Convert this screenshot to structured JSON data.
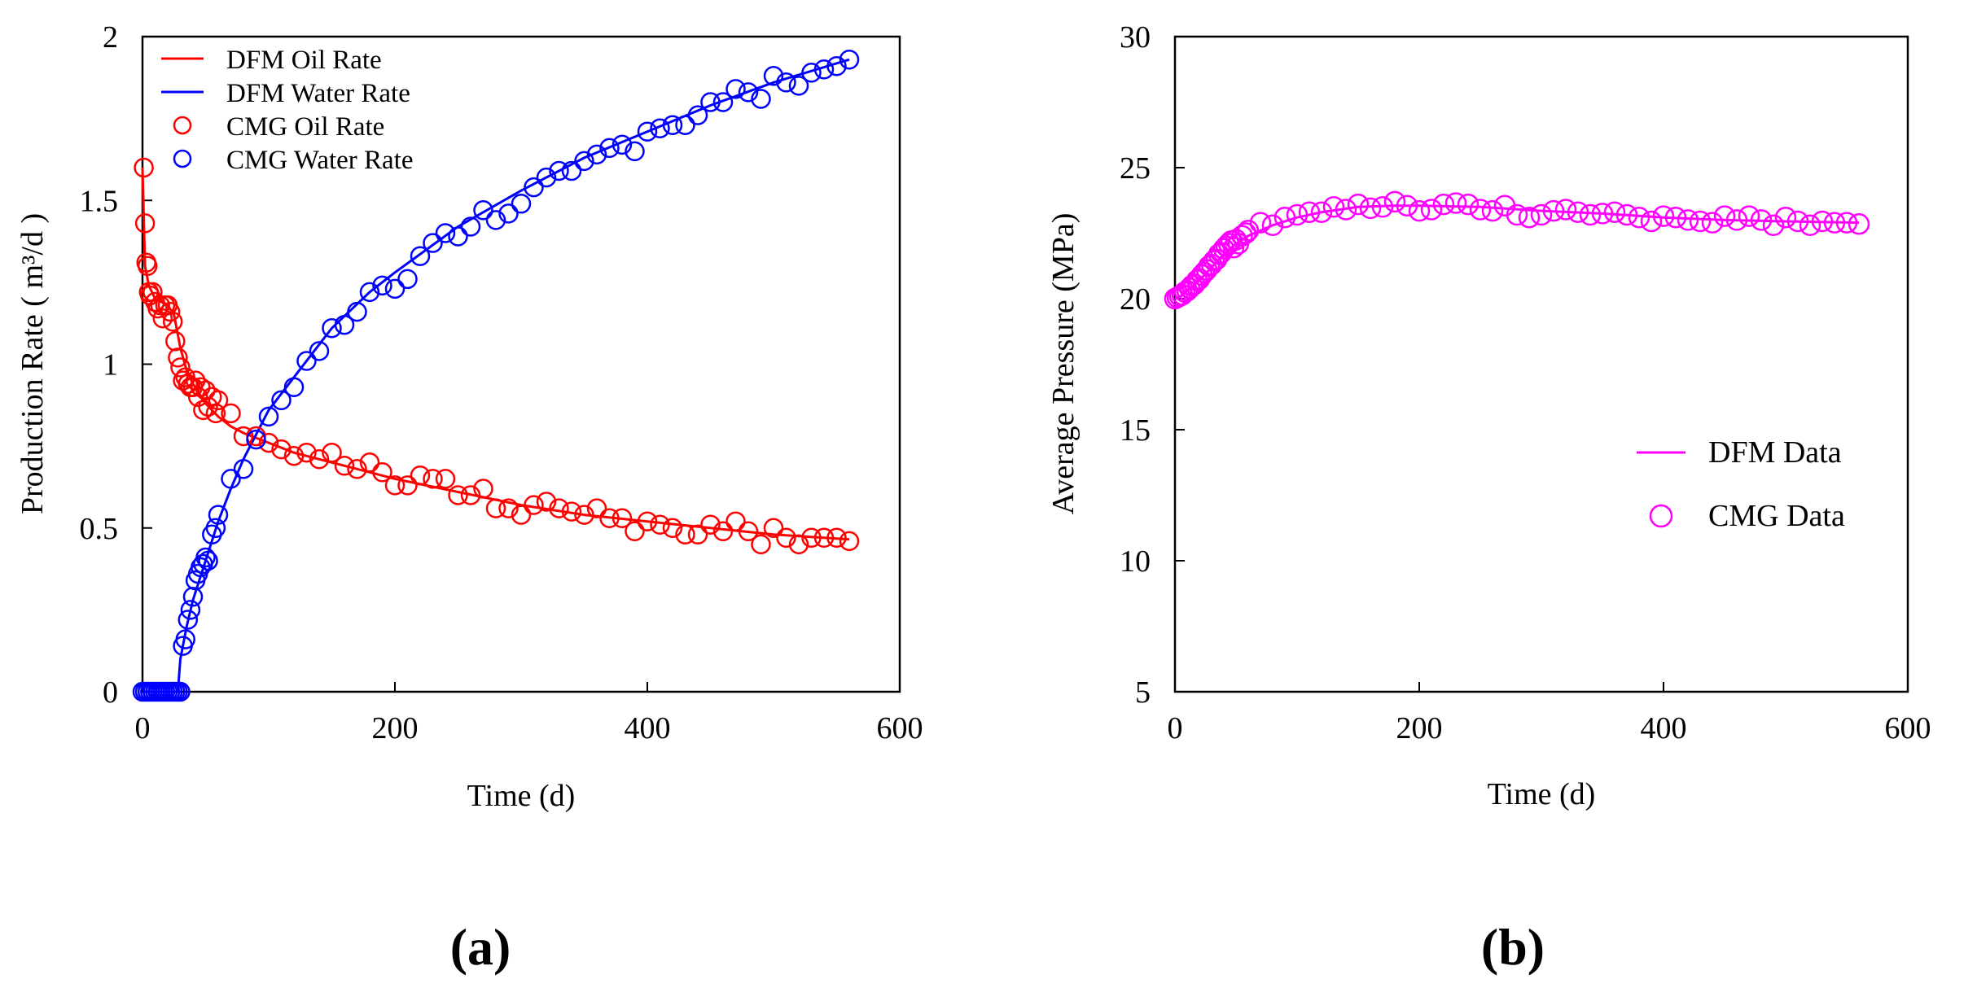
{
  "chart_data": [
    {
      "id": "a",
      "type": "line+scatter",
      "panel_label": "(a)",
      "xlabel": "Time (d)",
      "ylabel": "Production Rate ( m³/d )",
      "xlim": [
        0,
        600
      ],
      "ylim": [
        0,
        2
      ],
      "xticks": [
        0,
        200,
        400,
        600
      ],
      "yticks": [
        0,
        0.5,
        1,
        1.5,
        2
      ],
      "ytick_labels": [
        "0",
        "0.5",
        "1",
        "1.5",
        "2"
      ],
      "legend_position": "top-left",
      "series": [
        {
          "name": "DFM  Oil Rate",
          "kind": "line",
          "color": "#ff0000",
          "x": [
            0,
            2,
            5,
            10,
            15,
            20,
            25,
            30,
            35,
            40,
            50,
            60,
            70,
            80,
            100,
            120,
            150,
            180,
            200,
            250,
            300,
            350,
            400,
            450,
            500,
            560
          ],
          "y": [
            1.6,
            1.3,
            1.24,
            1.2,
            1.19,
            1.18,
            1.15,
            1.05,
            0.98,
            0.94,
            0.88,
            0.84,
            0.81,
            0.79,
            0.76,
            0.73,
            0.7,
            0.67,
            0.65,
            0.61,
            0.57,
            0.54,
            0.52,
            0.5,
            0.48,
            0.465
          ]
        },
        {
          "name": "DFM  Water Rate",
          "kind": "line",
          "color": "#0000ff",
          "x": [
            0,
            28,
            30,
            35,
            40,
            50,
            60,
            70,
            80,
            100,
            120,
            150,
            180,
            200,
            250,
            300,
            350,
            400,
            450,
            500,
            560
          ],
          "y": [
            0,
            0,
            0.1,
            0.2,
            0.28,
            0.4,
            0.52,
            0.62,
            0.71,
            0.86,
            0.96,
            1.11,
            1.22,
            1.28,
            1.42,
            1.53,
            1.63,
            1.71,
            1.79,
            1.86,
            1.93
          ]
        },
        {
          "name": "CMG Oil Rate",
          "kind": "scatter",
          "color": "#ff0000",
          "x": [
            1,
            2,
            3,
            4,
            5,
            6,
            8,
            10,
            12,
            14,
            16,
            18,
            20,
            22,
            24,
            26,
            28,
            30,
            32,
            34,
            36,
            38,
            40,
            42,
            44,
            46,
            48,
            50,
            52,
            55,
            58,
            60,
            70,
            80,
            90,
            100,
            110,
            120,
            130,
            140,
            150,
            160,
            170,
            180,
            190,
            200,
            210,
            220,
            230,
            240,
            250,
            260,
            270,
            280,
            290,
            300,
            310,
            320,
            330,
            340,
            350,
            360,
            370,
            380,
            390,
            400,
            410,
            420,
            430,
            440,
            450,
            460,
            470,
            480,
            490,
            500,
            510,
            520,
            530,
            540,
            550,
            560
          ],
          "y": [
            1.6,
            1.43,
            1.31,
            1.3,
            1.22,
            1.21,
            1.22,
            1.19,
            1.17,
            1.18,
            1.14,
            1.18,
            1.18,
            1.16,
            1.13,
            1.07,
            1.02,
            0.99,
            0.95,
            0.96,
            0.94,
            0.93,
            0.93,
            0.95,
            0.9,
            0.93,
            0.86,
            0.92,
            0.87,
            0.9,
            0.85,
            0.89,
            0.85,
            0.78,
            0.78,
            0.76,
            0.74,
            0.72,
            0.73,
            0.71,
            0.73,
            0.69,
            0.68,
            0.7,
            0.67,
            0.63,
            0.63,
            0.66,
            0.65,
            0.65,
            0.6,
            0.6,
            0.62,
            0.56,
            0.56,
            0.54,
            0.57,
            0.58,
            0.56,
            0.55,
            0.54,
            0.56,
            0.53,
            0.53,
            0.49,
            0.52,
            0.51,
            0.5,
            0.48,
            0.48,
            0.51,
            0.49,
            0.52,
            0.49,
            0.45,
            0.5,
            0.47,
            0.45,
            0.47,
            0.47,
            0.47,
            0.46
          ]
        },
        {
          "name": "CMG Water Rate",
          "kind": "scatter",
          "color": "#0000ff",
          "x": [
            0,
            2,
            4,
            6,
            8,
            10,
            12,
            14,
            16,
            18,
            20,
            22,
            24,
            26,
            28,
            30,
            32,
            34,
            36,
            38,
            40,
            42,
            44,
            46,
            48,
            50,
            52,
            55,
            58,
            60,
            70,
            80,
            90,
            100,
            110,
            120,
            130,
            140,
            150,
            160,
            170,
            180,
            190,
            200,
            210,
            220,
            230,
            240,
            250,
            260,
            270,
            280,
            290,
            300,
            310,
            320,
            330,
            340,
            350,
            360,
            370,
            380,
            390,
            400,
            410,
            420,
            430,
            440,
            450,
            460,
            470,
            480,
            490,
            500,
            510,
            520,
            530,
            540,
            550,
            560
          ],
          "y": [
            0,
            0,
            0,
            0,
            0,
            0,
            0,
            0,
            0,
            0,
            0,
            0,
            0,
            0,
            0,
            0,
            0.14,
            0.16,
            0.22,
            0.25,
            0.29,
            0.34,
            0.36,
            0.38,
            0.39,
            0.41,
            0.4,
            0.48,
            0.5,
            0.54,
            0.65,
            0.68,
            0.77,
            0.84,
            0.89,
            0.93,
            1.01,
            1.04,
            1.11,
            1.12,
            1.16,
            1.22,
            1.24,
            1.23,
            1.26,
            1.33,
            1.37,
            1.4,
            1.39,
            1.42,
            1.47,
            1.44,
            1.46,
            1.49,
            1.54,
            1.57,
            1.59,
            1.59,
            1.62,
            1.64,
            1.66,
            1.67,
            1.65,
            1.71,
            1.72,
            1.73,
            1.73,
            1.76,
            1.8,
            1.8,
            1.84,
            1.83,
            1.81,
            1.88,
            1.86,
            1.85,
            1.89,
            1.9,
            1.91,
            1.93
          ]
        }
      ]
    },
    {
      "id": "b",
      "type": "line+scatter",
      "panel_label": "(b)",
      "xlabel": "Time (d)",
      "ylabel": "Average Pressure (MPa)",
      "xlim": [
        0,
        600
      ],
      "ylim": [
        5,
        30
      ],
      "xticks": [
        0,
        200,
        400,
        600
      ],
      "yticks": [
        5,
        10,
        15,
        20,
        25,
        30
      ],
      "ytick_labels": [
        "5",
        "10",
        "15",
        "20",
        "25",
        "30"
      ],
      "legend_position": "center-right",
      "series": [
        {
          "name": "DFM Data",
          "kind": "line",
          "color": "#ff00ff",
          "x": [
            0,
            5,
            10,
            20,
            30,
            40,
            50,
            60,
            70,
            80,
            100,
            120,
            150,
            180,
            200,
            250,
            300,
            350,
            400,
            450,
            500,
            560
          ],
          "y": [
            20.0,
            20.1,
            20.3,
            20.7,
            21.2,
            21.7,
            22.1,
            22.4,
            22.6,
            22.8,
            23.1,
            23.3,
            23.5,
            23.55,
            23.55,
            23.5,
            23.35,
            23.25,
            23.1,
            23.0,
            22.95,
            22.9
          ]
        },
        {
          "name": "CMG Data",
          "kind": "scatter",
          "color": "#ff00ff",
          "x": [
            0,
            2,
            4,
            6,
            8,
            10,
            12,
            14,
            16,
            18,
            20,
            22,
            24,
            26,
            28,
            30,
            32,
            34,
            36,
            38,
            40,
            42,
            44,
            46,
            48,
            50,
            52,
            55,
            58,
            60,
            70,
            80,
            90,
            100,
            110,
            120,
            130,
            140,
            150,
            160,
            170,
            180,
            190,
            200,
            210,
            220,
            230,
            240,
            250,
            260,
            270,
            280,
            290,
            300,
            310,
            320,
            330,
            340,
            350,
            360,
            370,
            380,
            390,
            400,
            410,
            420,
            430,
            440,
            450,
            460,
            470,
            480,
            490,
            500,
            510,
            520,
            530,
            540,
            550,
            560
          ],
          "y": [
            20.0,
            20.05,
            20.1,
            20.15,
            20.25,
            20.3,
            20.4,
            20.5,
            20.55,
            20.7,
            20.75,
            20.9,
            21.0,
            21.1,
            21.25,
            21.3,
            21.45,
            21.5,
            21.7,
            21.75,
            21.9,
            22.0,
            22.1,
            22.2,
            21.95,
            22.25,
            22.1,
            22.4,
            22.5,
            22.6,
            22.9,
            22.8,
            23.1,
            23.2,
            23.3,
            23.3,
            23.5,
            23.4,
            23.6,
            23.45,
            23.5,
            23.7,
            23.55,
            23.35,
            23.4,
            23.6,
            23.65,
            23.6,
            23.4,
            23.35,
            23.55,
            23.2,
            23.1,
            23.2,
            23.35,
            23.4,
            23.3,
            23.2,
            23.25,
            23.3,
            23.2,
            23.1,
            22.95,
            23.15,
            23.1,
            23.0,
            22.95,
            22.9,
            23.15,
            23.0,
            23.15,
            23.0,
            22.8,
            23.1,
            22.95,
            22.8,
            22.95,
            22.9,
            22.9,
            22.85
          ]
        }
      ]
    }
  ]
}
